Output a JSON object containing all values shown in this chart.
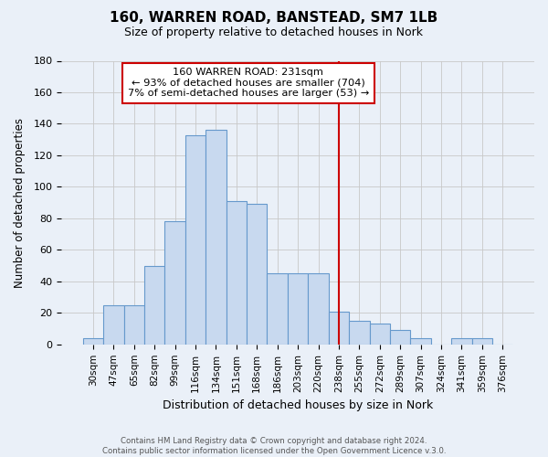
{
  "title": "160, WARREN ROAD, BANSTEAD, SM7 1LB",
  "subtitle": "Size of property relative to detached houses in Nork",
  "xlabel": "Distribution of detached houses by size in Nork",
  "ylabel": "Number of detached properties",
  "footer_line1": "Contains HM Land Registry data © Crown copyright and database right 2024.",
  "footer_line2": "Contains public sector information licensed under the Open Government Licence v.3.0.",
  "bin_labels": [
    "30sqm",
    "47sqm",
    "65sqm",
    "82sqm",
    "99sqm",
    "116sqm",
    "134sqm",
    "151sqm",
    "168sqm",
    "186sqm",
    "203sqm",
    "220sqm",
    "238sqm",
    "255sqm",
    "272sqm",
    "289sqm",
    "307sqm",
    "324sqm",
    "341sqm",
    "359sqm",
    "376sqm"
  ],
  "bin_values": [
    4,
    25,
    25,
    50,
    78,
    133,
    136,
    91,
    89,
    45,
    45,
    45,
    21,
    15,
    13,
    9,
    4,
    0,
    4,
    4,
    0
  ],
  "bar_color": "#c8d9ef",
  "bar_edge_color": "#6699cc",
  "bg_color": "#eaf0f8",
  "grid_color": "#c8c8c8",
  "vline_color": "#cc0000",
  "vline_x": 12.0,
  "annotation_title": "160 WARREN ROAD: 231sqm",
  "annotation_line1": "← 93% of detached houses are smaller (704)",
  "annotation_line2": "7% of semi-detached houses are larger (53) →",
  "ylim": [
    0,
    180
  ],
  "yticks": [
    0,
    20,
    40,
    60,
    80,
    100,
    120,
    140,
    160,
    180
  ]
}
